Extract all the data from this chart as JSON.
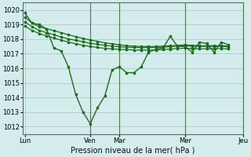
{
  "bg_color": "#d4ecec",
  "grid_color": "#b0d0d0",
  "line_color": "#1a6e1a",
  "xlabel": "Pression niveau de la mer( hPa )",
  "ylim": [
    1011.5,
    1020.5
  ],
  "yticks": [
    1012,
    1013,
    1014,
    1015,
    1016,
    1017,
    1018,
    1019,
    1020
  ],
  "xtick_labels": [
    "Lun",
    "Ven",
    "Mar",
    "Mer",
    "Jeu"
  ],
  "xtick_positions": [
    0,
    9,
    13,
    22,
    30
  ],
  "vline_positions": [
    9,
    13,
    22,
    30
  ],
  "line1_x": [
    0,
    1,
    2,
    3,
    4,
    5,
    6,
    7,
    8,
    9,
    10,
    11,
    12,
    13,
    14,
    15,
    16,
    17,
    18,
    19,
    20,
    21,
    22,
    23,
    24,
    25,
    26,
    27,
    28
  ],
  "line1_y": [
    1019.8,
    1019.1,
    1019.0,
    1018.7,
    1017.4,
    1017.2,
    1016.1,
    1014.2,
    1013.0,
    1012.2,
    1013.3,
    1014.1,
    1015.9,
    1016.1,
    1015.7,
    1015.7,
    1016.1,
    1017.1,
    1017.3,
    1017.4,
    1018.2,
    1017.5,
    1017.5,
    1017.1,
    1017.8,
    1017.7,
    1017.1,
    1017.8,
    1017.6
  ],
  "line2_x": [
    0,
    1,
    2,
    3,
    4,
    5,
    6,
    7,
    8,
    9,
    10,
    11,
    12,
    13,
    14,
    15,
    16,
    17,
    18,
    19,
    20,
    21,
    22,
    23,
    24,
    25,
    26,
    27,
    28
  ],
  "line2_y": [
    1019.5,
    1019.1,
    1018.85,
    1018.72,
    1018.58,
    1018.45,
    1018.3,
    1018.18,
    1018.05,
    1017.95,
    1017.85,
    1017.75,
    1017.68,
    1017.62,
    1017.55,
    1017.52,
    1017.5,
    1017.5,
    1017.5,
    1017.52,
    1017.55,
    1017.58,
    1017.6,
    1017.58,
    1017.55,
    1017.55,
    1017.55,
    1017.55,
    1017.52
  ],
  "line3_x": [
    0,
    1,
    2,
    3,
    4,
    5,
    6,
    7,
    8,
    9,
    10,
    11,
    12,
    13,
    14,
    15,
    16,
    17,
    18,
    19,
    20,
    21,
    22,
    23,
    24,
    25,
    26,
    27,
    28
  ],
  "line3_y": [
    1019.2,
    1018.85,
    1018.6,
    1018.45,
    1018.3,
    1018.15,
    1018.02,
    1017.92,
    1017.82,
    1017.72,
    1017.65,
    1017.58,
    1017.52,
    1017.48,
    1017.45,
    1017.43,
    1017.42,
    1017.42,
    1017.43,
    1017.45,
    1017.48,
    1017.52,
    1017.54,
    1017.52,
    1017.5,
    1017.5,
    1017.5,
    1017.5,
    1017.48
  ],
  "line4_x": [
    0,
    1,
    2,
    3,
    4,
    5,
    6,
    7,
    8,
    9,
    10,
    11,
    12,
    13,
    14,
    15,
    16,
    17,
    18,
    19,
    20,
    21,
    22,
    23,
    24,
    25,
    26,
    27,
    28
  ],
  "line4_y": [
    1018.9,
    1018.6,
    1018.38,
    1018.22,
    1018.08,
    1017.93,
    1017.8,
    1017.68,
    1017.58,
    1017.5,
    1017.43,
    1017.37,
    1017.33,
    1017.3,
    1017.28,
    1017.26,
    1017.25,
    1017.25,
    1017.26,
    1017.28,
    1017.32,
    1017.36,
    1017.38,
    1017.36,
    1017.34,
    1017.34,
    1017.35,
    1017.35,
    1017.33
  ]
}
